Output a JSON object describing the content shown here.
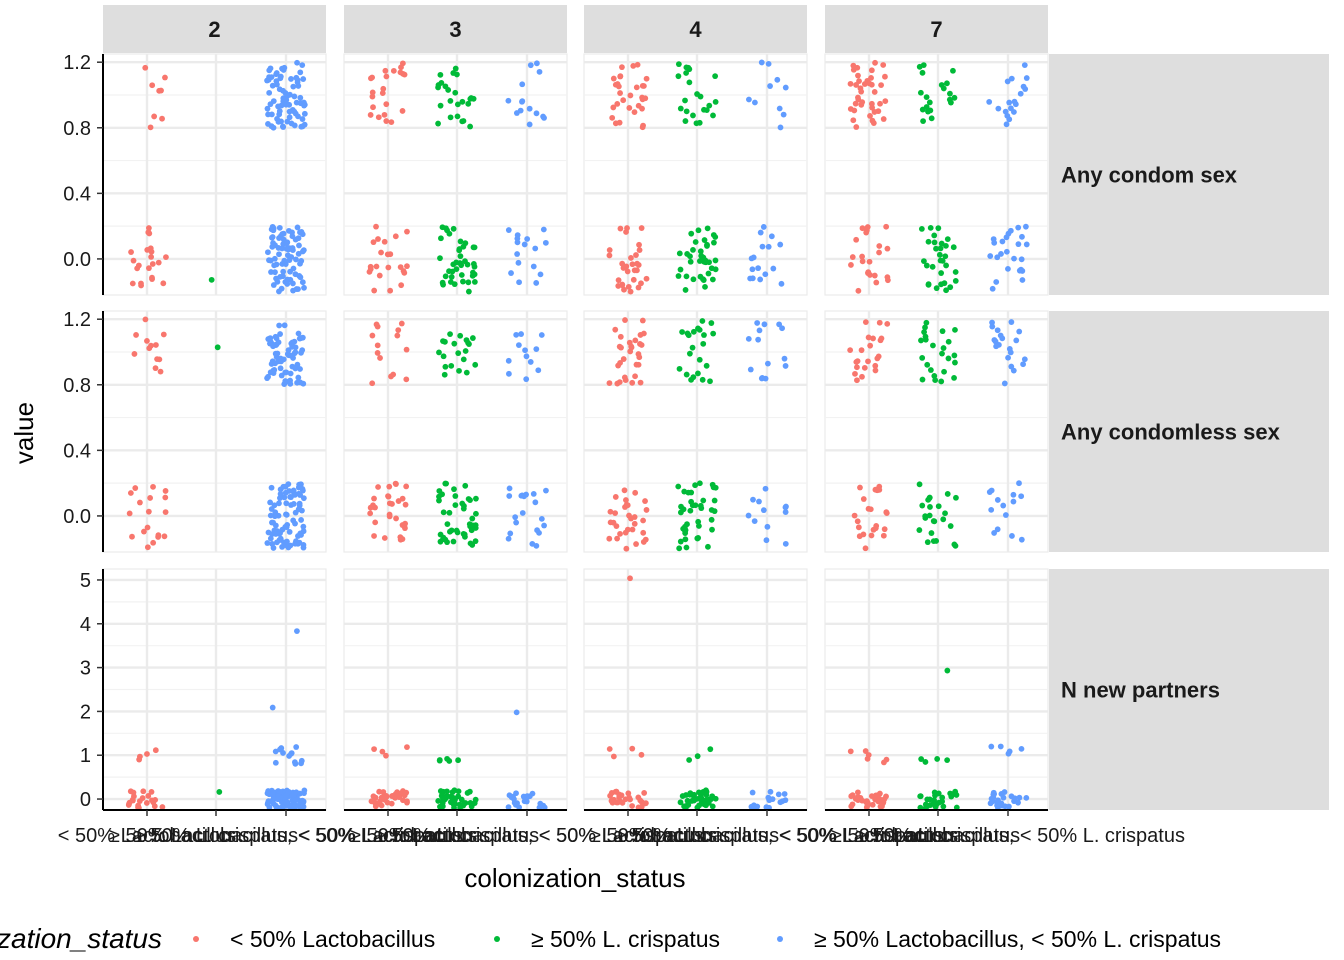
{
  "chart_data": {
    "type": "scatter",
    "jitter": true,
    "xlabel": "colonization_status",
    "ylabel": "value",
    "categories": [
      "< 50% Lactobacillus",
      "≥ 50% L. crispatus",
      "≥ 50% Lactobacillus, < 50% L. crispatus"
    ],
    "category_tick_labels": [
      "< 50% Lactobacillus",
      "≥ 50% L. crispatus",
      "≥ 50% Lactobacillus, < 50% L. crispatus"
    ],
    "colors": [
      "#F8766D",
      "#00BA38",
      "#619CFF"
    ],
    "facet_cols": [
      "2",
      "3",
      "4",
      "7"
    ],
    "facet_rows": [
      "Any condom sex",
      "Any condomless sex",
      "N new partners"
    ],
    "row_axes": [
      {
        "ylim": [
          -0.22,
          1.25
        ],
        "ticks": [
          "0.0",
          "0.4",
          "0.8",
          "1.2"
        ],
        "tick_values": [
          0,
          0.4,
          0.8,
          1.2
        ]
      },
      {
        "ylim": [
          -0.22,
          1.25
        ],
        "ticks": [
          "0.0",
          "0.4",
          "0.8",
          "1.2"
        ],
        "tick_values": [
          0,
          0.4,
          0.8,
          1.2
        ]
      },
      {
        "ylim": [
          -0.25,
          5.25
        ],
        "ticks": [
          "0",
          "1",
          "2",
          "3",
          "4",
          "5"
        ],
        "tick_values": [
          0,
          1,
          2,
          3,
          4,
          5
        ]
      }
    ],
    "panels": [
      {
        "row": 0,
        "col": 0,
        "groups": [
          {
            "category": 0,
            "value_counts": [
              [
                0,
                22
              ],
              [
                1,
                8
              ]
            ]
          },
          {
            "category": 1,
            "value_counts": [
              [
                0,
                1
              ]
            ]
          },
          {
            "category": 2,
            "value_counts": [
              [
                0,
                80
              ],
              [
                1,
                75
              ]
            ]
          }
        ]
      },
      {
        "row": 0,
        "col": 1,
        "groups": [
          {
            "category": 0,
            "value_counts": [
              [
                0,
                22
              ],
              [
                1,
                22
              ]
            ]
          },
          {
            "category": 1,
            "value_counts": [
              [
                0,
                40
              ],
              [
                1,
                24
              ]
            ]
          },
          {
            "category": 2,
            "value_counts": [
              [
                0,
                16
              ],
              [
                1,
                14
              ]
            ]
          }
        ]
      },
      {
        "row": 0,
        "col": 2,
        "groups": [
          {
            "category": 0,
            "value_counts": [
              [
                0,
                30
              ],
              [
                1,
                30
              ]
            ]
          },
          {
            "category": 1,
            "value_counts": [
              [
                0,
                38
              ],
              [
                1,
                22
              ]
            ]
          },
          {
            "category": 2,
            "value_counts": [
              [
                0,
                16
              ],
              [
                1,
                10
              ]
            ]
          }
        ]
      },
      {
        "row": 0,
        "col": 3,
        "groups": [
          {
            "category": 0,
            "value_counts": [
              [
                0,
                22
              ],
              [
                1,
                40
              ]
            ]
          },
          {
            "category": 1,
            "value_counts": [
              [
                0,
                30
              ],
              [
                1,
                20
              ]
            ]
          },
          {
            "category": 2,
            "value_counts": [
              [
                0,
                24
              ],
              [
                1,
                18
              ]
            ]
          }
        ]
      },
      {
        "row": 1,
        "col": 0,
        "groups": [
          {
            "category": 0,
            "value_counts": [
              [
                0,
                18
              ],
              [
                1,
                12
              ]
            ]
          },
          {
            "category": 1,
            "value_counts": [
              [
                1,
                1
              ]
            ]
          },
          {
            "category": 2,
            "value_counts": [
              [
                0,
                85
              ],
              [
                1,
                70
              ]
            ]
          }
        ]
      },
      {
        "row": 1,
        "col": 1,
        "groups": [
          {
            "category": 0,
            "value_counts": [
              [
                0,
                30
              ],
              [
                1,
                14
              ]
            ]
          },
          {
            "category": 1,
            "value_counts": [
              [
                0,
                44
              ],
              [
                1,
                20
              ]
            ]
          },
          {
            "category": 2,
            "value_counts": [
              [
                0,
                20
              ],
              [
                1,
                12
              ]
            ]
          }
        ]
      },
      {
        "row": 1,
        "col": 2,
        "groups": [
          {
            "category": 0,
            "value_counts": [
              [
                0,
                30
              ],
              [
                1,
                30
              ]
            ]
          },
          {
            "category": 1,
            "value_counts": [
              [
                0,
                40
              ],
              [
                1,
                22
              ]
            ]
          },
          {
            "category": 2,
            "value_counts": [
              [
                0,
                12
              ],
              [
                1,
                14
              ]
            ]
          }
        ]
      },
      {
        "row": 1,
        "col": 3,
        "groups": [
          {
            "category": 0,
            "value_counts": [
              [
                0,
                22
              ],
              [
                1,
                22
              ]
            ]
          },
          {
            "category": 1,
            "value_counts": [
              [
                0,
                24
              ],
              [
                1,
                24
              ]
            ]
          },
          {
            "category": 2,
            "value_counts": [
              [
                0,
                14
              ],
              [
                1,
                20
              ]
            ]
          }
        ]
      },
      {
        "row": 2,
        "col": 0,
        "groups": [
          {
            "category": 0,
            "value_counts": [
              [
                0,
                22
              ],
              [
                1,
                4
              ]
            ]
          },
          {
            "category": 1,
            "value_counts": [
              [
                0,
                1
              ]
            ]
          },
          {
            "category": 2,
            "value_counts": [
              [
                0,
                90
              ],
              [
                1,
                14
              ],
              [
                2,
                1
              ],
              [
                4,
                1
              ]
            ]
          }
        ]
      },
      {
        "row": 2,
        "col": 1,
        "groups": [
          {
            "category": 0,
            "value_counts": [
              [
                0,
                32
              ],
              [
                1,
                4
              ]
            ]
          },
          {
            "category": 1,
            "value_counts": [
              [
                0,
                40
              ],
              [
                1,
                5
              ]
            ]
          },
          {
            "category": 2,
            "value_counts": [
              [
                0,
                22
              ],
              [
                2,
                1
              ]
            ]
          }
        ]
      },
      {
        "row": 2,
        "col": 2,
        "groups": [
          {
            "category": 0,
            "value_counts": [
              [
                0,
                30
              ],
              [
                1,
                4
              ],
              [
                5,
                1
              ]
            ]
          },
          {
            "category": 1,
            "value_counts": [
              [
                0,
                40
              ],
              [
                1,
                3
              ]
            ]
          },
          {
            "category": 2,
            "value_counts": [
              [
                0,
                16
              ]
            ]
          }
        ]
      },
      {
        "row": 2,
        "col": 3,
        "groups": [
          {
            "category": 0,
            "value_counts": [
              [
                0,
                32
              ],
              [
                1,
                6
              ]
            ]
          },
          {
            "category": 1,
            "value_counts": [
              [
                0,
                26
              ],
              [
                1,
                4
              ],
              [
                3,
                1
              ]
            ]
          },
          {
            "category": 2,
            "value_counts": [
              [
                0,
                24
              ],
              [
                1,
                5
              ]
            ]
          }
        ]
      }
    ],
    "legend": {
      "title": "colonization_status",
      "position": "bottom",
      "entries": [
        "< 50% Lactobacillus",
        "≥ 50% L. crispatus",
        "≥ 50% Lactobacillus, < 50% L. crispatus"
      ]
    },
    "grid": true,
    "strip_background": "#dedede"
  }
}
